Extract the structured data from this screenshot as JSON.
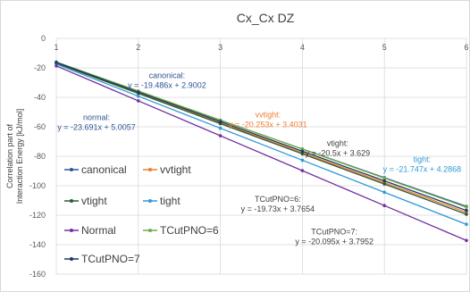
{
  "chart_data": {
    "type": "line",
    "title": "Cx_Cx DZ",
    "ylabel_lines": [
      "Correlation part of",
      "Interaction Energy [kJ/mol]"
    ],
    "x": [
      1,
      2,
      3,
      4,
      5,
      6
    ],
    "xlim": [
      1,
      6
    ],
    "ylim": [
      -160,
      0
    ],
    "yticks": [
      0,
      -20,
      -40,
      -60,
      -80,
      -100,
      -120,
      -140,
      -160
    ],
    "xticks": [
      1,
      2,
      3,
      4,
      5,
      6
    ],
    "grid": true,
    "legend_position": "left",
    "series": [
      {
        "name": "canonical",
        "color": "#2F5597",
        "values": [
          -16.59,
          -36.07,
          -55.56,
          -75.04,
          -94.53,
          -114.02
        ]
      },
      {
        "name": "vvtight",
        "color": "#ED7D31",
        "values": [
          -16.85,
          -37.1,
          -57.35,
          -77.61,
          -97.86,
          -118.11
        ]
      },
      {
        "name": "vtight",
        "color": "#2E5B2E",
        "values": [
          -16.87,
          -37.37,
          -57.87,
          -78.37,
          -98.87,
          -119.37
        ]
      },
      {
        "name": "tight",
        "color": "#2E9BD6",
        "values": [
          -17.46,
          -39.21,
          -60.95,
          -82.7,
          -104.45,
          -126.19
        ]
      },
      {
        "name": "Normal",
        "color": "#7030A0",
        "values": [
          -18.69,
          -42.38,
          -66.07,
          -89.76,
          -113.45,
          -137.14
        ]
      },
      {
        "name": "TCutPNO=6",
        "color": "#70AD47",
        "values": [
          -15.96,
          -35.69,
          -55.42,
          -75.15,
          -94.88,
          -114.61
        ]
      },
      {
        "name": "TCutPNO=7",
        "color": "#1F3864",
        "values": [
          -16.31,
          -36.4,
          -56.49,
          -76.59,
          -96.68,
          -116.78
        ]
      }
    ],
    "annotations": [
      {
        "lines": [
          "canonical:",
          "y = -19.486x + 2.9002"
        ],
        "color": "#2F5597",
        "x": 2.35,
        "y": -27
      },
      {
        "lines": [
          "vvtight:",
          "y = -20.253x + 3.4031"
        ],
        "color": "#ED7D31",
        "x": 3.58,
        "y": -53.5
      },
      {
        "lines": [
          "normal:",
          "y = -23.691x + 5.0057"
        ],
        "color": "#2F5597",
        "x": 1.49,
        "y": -55.5
      },
      {
        "lines": [
          "vtight:",
          "y = -20.5x + 3.629"
        ],
        "color": "#404040",
        "x": 4.43,
        "y": -73
      },
      {
        "lines": [
          "tight:",
          "y = -21.747x + 4.2868"
        ],
        "color": "#2E9BD6",
        "x": 5.46,
        "y": -84
      },
      {
        "lines": [
          "TCutPNO=6:",
          "y = -19.73x + 3.7654"
        ],
        "color": "#404040",
        "x": 3.7,
        "y": -111
      },
      {
        "lines": [
          "TCutPNO=7:",
          "y = -20.095x + 3.7952"
        ],
        "color": "#404040",
        "x": 4.39,
        "y": -133
      }
    ]
  }
}
